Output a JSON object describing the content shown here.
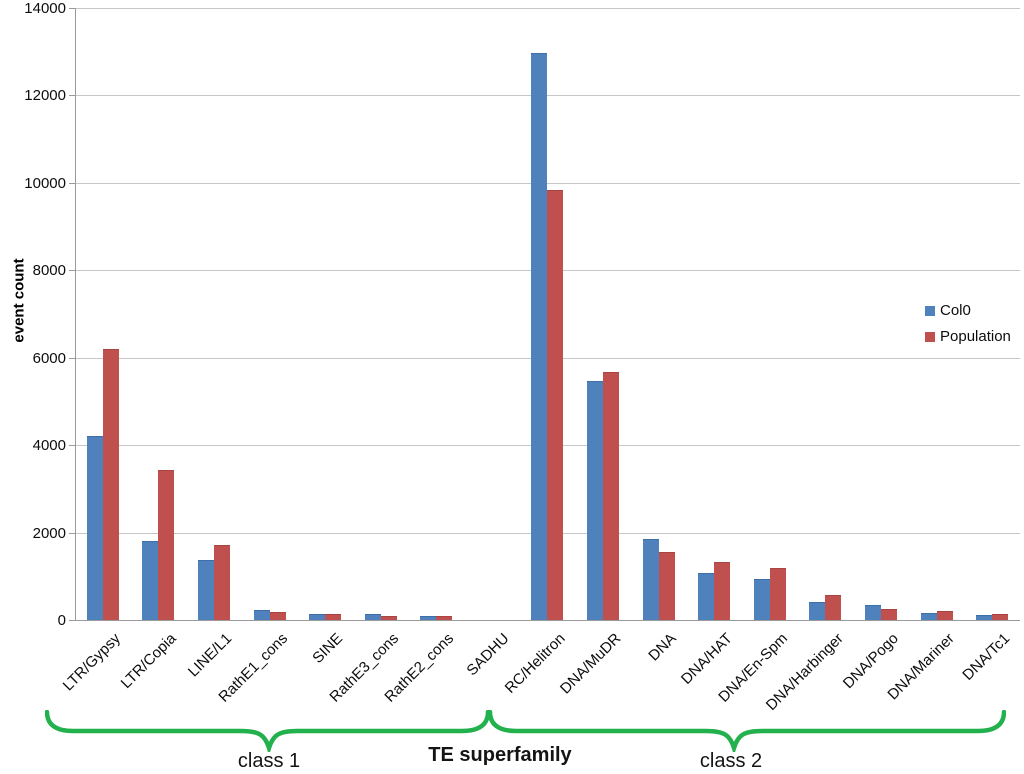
{
  "chart_data": {
    "type": "bar",
    "title": "",
    "ylabel": "event count",
    "xlabel": "TE superfamily",
    "ylim": [
      0,
      14000
    ],
    "ytick_step": 2000,
    "yticks": [
      0,
      2000,
      4000,
      6000,
      8000,
      10000,
      12000,
      14000
    ],
    "grid": true,
    "legend_position": "right",
    "categories": [
      "LTR/Gypsy",
      "LTR/Copia",
      "LINE/L1",
      "RathE1_cons",
      "SINE",
      "RathE3_cons",
      "RathE2_cons",
      "SADHU",
      "RC/Helitron",
      "DNA/MuDR",
      "DNA",
      "DNA/HAT",
      "DNA/En-Spm",
      "DNA/Harbinger",
      "DNA/Pogo",
      "DNA/Mariner",
      "DNA/Tc1"
    ],
    "series": [
      {
        "name": "Col0",
        "color": "#4f81bd",
        "values": [
          4180,
          1780,
          1350,
          210,
          120,
          105,
          65,
          0,
          12950,
          5440,
          1830,
          1050,
          920,
          380,
          330,
          140,
          85
        ]
      },
      {
        "name": "Population",
        "color": "#c0504d",
        "values": [
          6180,
          3400,
          1690,
          165,
          115,
          65,
          80,
          0,
          9820,
          5650,
          1540,
          1310,
          1170,
          550,
          220,
          185,
          105
        ]
      }
    ],
    "annotations": {
      "class1_label": "class 1",
      "class2_label": "class 2",
      "brace_color": "#22b14c"
    }
  }
}
